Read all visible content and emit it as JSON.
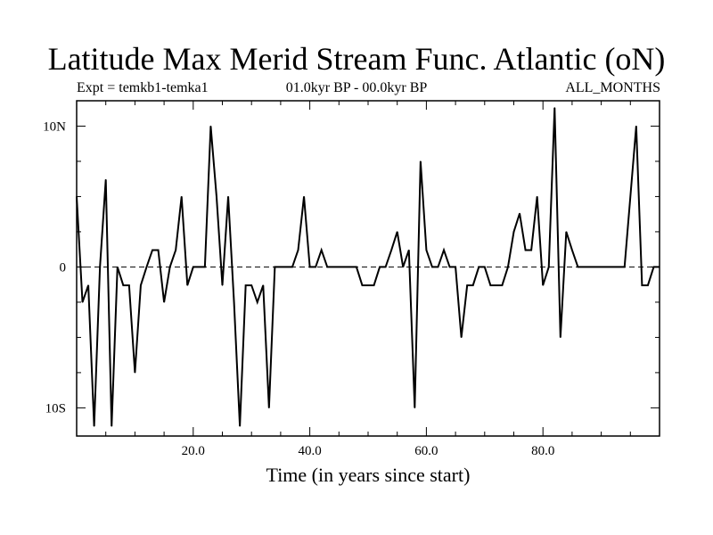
{
  "chart_data": {
    "type": "line",
    "title": "Latitude Max Merid Stream Func. Atlantic (oN)",
    "subtitle_left": "Expt = temkb1-temka1",
    "subtitle_center": "01.0kyr BP - 00.0kyr BP",
    "subtitle_right": "ALL_MONTHS",
    "xlabel": "Time (in years since start)",
    "ylabel": "",
    "xlim": [
      0,
      100
    ],
    "ylim": [
      -12,
      11.8
    ],
    "x_ticks": [
      20,
      40,
      60,
      80
    ],
    "x_tick_labels": [
      "20.0",
      "40.0",
      "60.0",
      "80.0"
    ],
    "y_ticks": [
      -10,
      0,
      10
    ],
    "y_tick_labels": [
      "10S",
      "0",
      "10N"
    ],
    "zero_line": "dashed",
    "series": [
      {
        "color": "#000000",
        "x": [
          0,
          1,
          2,
          3,
          4,
          5,
          6,
          7,
          8,
          9,
          10,
          11,
          12,
          13,
          14,
          15,
          16,
          17,
          18,
          19,
          20,
          21,
          22,
          23,
          24,
          25,
          26,
          27,
          28,
          29,
          30,
          31,
          32,
          33,
          34,
          35,
          36,
          37,
          38,
          39,
          40,
          41,
          42,
          43,
          44,
          45,
          46,
          47,
          48,
          49,
          50,
          51,
          52,
          53,
          54,
          55,
          56,
          57,
          58,
          59,
          60,
          61,
          62,
          63,
          64,
          65,
          66,
          67,
          68,
          69,
          70,
          71,
          72,
          73,
          74,
          75,
          76,
          77,
          78,
          79,
          80,
          81,
          82,
          83,
          84,
          85,
          86,
          87,
          88,
          89,
          90,
          91,
          92,
          93,
          94,
          95,
          96,
          97,
          98,
          99,
          100
        ],
        "values": [
          5,
          -2.5,
          -1.3,
          -11.3,
          0,
          6.2,
          -11.3,
          0,
          -1.3,
          -1.3,
          -7.5,
          -1.3,
          0,
          1.2,
          1.2,
          -2.5,
          0,
          1.2,
          5,
          -1.3,
          0,
          0,
          0,
          10,
          5,
          -1.3,
          5,
          -2.5,
          -11.3,
          -1.3,
          -1.3,
          -2.5,
          -1.3,
          -10,
          0,
          0,
          0,
          0,
          1.2,
          5,
          0,
          0,
          1.2,
          0,
          0,
          0,
          0,
          0,
          0,
          -1.3,
          -1.3,
          -1.3,
          0,
          0,
          1.2,
          2.5,
          0,
          1.2,
          -10,
          7.5,
          1.2,
          0,
          0,
          1.2,
          0,
          0,
          -5,
          -1.3,
          -1.3,
          0,
          0,
          -1.3,
          -1.3,
          -1.3,
          0,
          2.5,
          3.8,
          1.2,
          1.2,
          5,
          -1.3,
          0,
          11.3,
          -5,
          2.5,
          1.2,
          0,
          0,
          0,
          0,
          0,
          0,
          0,
          0,
          0,
          5,
          10,
          -1.3,
          -1.3,
          0,
          0
        ]
      }
    ]
  }
}
